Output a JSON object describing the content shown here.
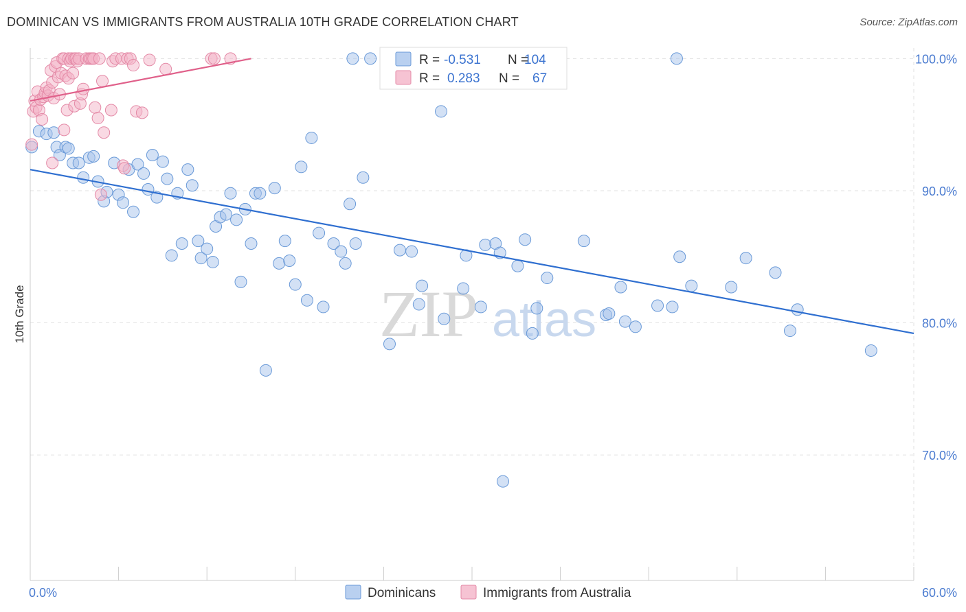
{
  "title": "DOMINICAN VS IMMIGRANTS FROM AUSTRALIA 10TH GRADE CORRELATION CHART",
  "source": "Source: ZipAtlas.com",
  "watermark": {
    "zip": "ZIP",
    "atlas": "atlas"
  },
  "legend_box": {
    "rows": [
      {
        "r_label": "R =",
        "r_value": "-0.531",
        "n_label": "N =",
        "n_value": "104",
        "color": "#a7c4ec"
      },
      {
        "r_label": "R =",
        "r_value": "0.283",
        "n_label": "N =",
        "n_value": "67",
        "color": "#f4b4c8"
      }
    ]
  },
  "bottom_legend": [
    {
      "label": "Dominicans",
      "color": "#a7c4ec"
    },
    {
      "label": "Immigrants from Australia",
      "color": "#f4b4c8"
    }
  ],
  "chart_data": {
    "type": "scatter",
    "title": "DOMINICAN VS IMMIGRANTS FROM AUSTRALIA 10TH GRADE CORRELATION CHART",
    "xlabel": "",
    "ylabel": "10th Grade",
    "xlim": [
      0,
      60
    ],
    "ylim": [
      60.5,
      100.8
    ],
    "x_tick_labels": [
      "0.0%",
      "60.0%"
    ],
    "y_ticks": [
      70,
      80,
      90,
      100
    ],
    "y_tick_labels": [
      "70.0%",
      "80.0%",
      "90.0%",
      "100.0%"
    ],
    "grid": true,
    "legend_position": "top-center",
    "series": [
      {
        "name": "Dominicans",
        "color": "#a7c4ec",
        "stroke": "#6a9ad8",
        "trend_color": "#2f6fd0",
        "trend": {
          "x": [
            0,
            60
          ],
          "y": [
            91.6,
            79.2
          ]
        },
        "points": [
          [
            0.1,
            93.3
          ],
          [
            0.6,
            94.5
          ],
          [
            1.1,
            94.3
          ],
          [
            1.6,
            94.4
          ],
          [
            1.8,
            93.3
          ],
          [
            2.0,
            92.7
          ],
          [
            2.4,
            93.3
          ],
          [
            2.6,
            93.2
          ],
          [
            2.9,
            92.1
          ],
          [
            3.3,
            92.1
          ],
          [
            3.6,
            91.0
          ],
          [
            4.0,
            92.5
          ],
          [
            4.3,
            92.6
          ],
          [
            4.6,
            90.7
          ],
          [
            5.0,
            89.2
          ],
          [
            5.2,
            89.9
          ],
          [
            5.7,
            92.1
          ],
          [
            6.0,
            89.7
          ],
          [
            6.3,
            89.1
          ],
          [
            6.7,
            91.6
          ],
          [
            7.0,
            88.4
          ],
          [
            7.3,
            92.0
          ],
          [
            7.7,
            91.3
          ],
          [
            8.0,
            90.1
          ],
          [
            8.3,
            92.7
          ],
          [
            8.6,
            89.5
          ],
          [
            9.0,
            92.2
          ],
          [
            9.3,
            90.9
          ],
          [
            9.6,
            85.1
          ],
          [
            10.0,
            89.8
          ],
          [
            10.3,
            86.0
          ],
          [
            10.7,
            91.6
          ],
          [
            11.0,
            90.4
          ],
          [
            11.4,
            86.2
          ],
          [
            11.6,
            84.9
          ],
          [
            12.0,
            85.6
          ],
          [
            12.4,
            84.6
          ],
          [
            12.6,
            87.3
          ],
          [
            12.9,
            88.0
          ],
          [
            13.3,
            88.2
          ],
          [
            13.6,
            89.8
          ],
          [
            14.0,
            87.8
          ],
          [
            14.3,
            83.1
          ],
          [
            14.6,
            88.6
          ],
          [
            15.0,
            86.0
          ],
          [
            15.3,
            89.8
          ],
          [
            15.6,
            89.8
          ],
          [
            16.0,
            76.4
          ],
          [
            16.6,
            90.2
          ],
          [
            16.9,
            84.5
          ],
          [
            17.3,
            86.2
          ],
          [
            17.6,
            84.7
          ],
          [
            18.0,
            82.9
          ],
          [
            18.4,
            91.8
          ],
          [
            18.8,
            81.7
          ],
          [
            19.1,
            94.0
          ],
          [
            19.6,
            86.8
          ],
          [
            19.9,
            81.2
          ],
          [
            20.6,
            86.0
          ],
          [
            21.1,
            85.4
          ],
          [
            21.4,
            84.5
          ],
          [
            21.7,
            89.0
          ],
          [
            22.1,
            86.0
          ],
          [
            22.6,
            91.0
          ],
          [
            21.9,
            100.0
          ],
          [
            23.1,
            100.0
          ],
          [
            24.4,
            78.4
          ],
          [
            25.1,
            85.5
          ],
          [
            25.9,
            85.4
          ],
          [
            25.4,
            100.0
          ],
          [
            25.6,
            100.0
          ],
          [
            26.4,
            81.4
          ],
          [
            26.6,
            82.8
          ],
          [
            27.9,
            96.0
          ],
          [
            28.1,
            80.3
          ],
          [
            29.4,
            82.6
          ],
          [
            29.6,
            85.1
          ],
          [
            30.6,
            81.2
          ],
          [
            30.9,
            85.9
          ],
          [
            31.6,
            86.0
          ],
          [
            31.9,
            85.3
          ],
          [
            32.1,
            68.0
          ],
          [
            32.6,
            100.0
          ],
          [
            33.1,
            84.3
          ],
          [
            33.6,
            86.3
          ],
          [
            34.1,
            79.2
          ],
          [
            34.4,
            81.1
          ],
          [
            35.1,
            83.4
          ],
          [
            37.6,
            86.2
          ],
          [
            39.1,
            80.6
          ],
          [
            39.3,
            80.7
          ],
          [
            40.1,
            82.7
          ],
          [
            40.4,
            80.1
          ],
          [
            41.1,
            79.7
          ],
          [
            42.6,
            81.3
          ],
          [
            43.6,
            81.2
          ],
          [
            43.9,
            100.0
          ],
          [
            44.1,
            85.0
          ],
          [
            44.9,
            82.8
          ],
          [
            47.6,
            82.7
          ],
          [
            48.6,
            84.9
          ],
          [
            50.6,
            83.8
          ],
          [
            51.6,
            79.4
          ],
          [
            52.1,
            81.0
          ],
          [
            57.1,
            77.9
          ]
        ]
      },
      {
        "name": "Immigrants from Australia",
        "color": "#f4b4c8",
        "stroke": "#e48aa7",
        "trend_color": "#e0608a",
        "trend": {
          "x": [
            0,
            15
          ],
          "y": [
            96.8,
            100.0
          ]
        },
        "points": [
          [
            0.1,
            93.5
          ],
          [
            0.2,
            96.0
          ],
          [
            0.3,
            96.8
          ],
          [
            0.4,
            96.3
          ],
          [
            0.5,
            97.5
          ],
          [
            0.6,
            96.1
          ],
          [
            0.7,
            96.9
          ],
          [
            0.8,
            95.4
          ],
          [
            0.9,
            97.1
          ],
          [
            1.0,
            97.4
          ],
          [
            1.1,
            97.8
          ],
          [
            1.2,
            97.2
          ],
          [
            1.3,
            97.6
          ],
          [
            1.4,
            99.1
          ],
          [
            1.5,
            98.2
          ],
          [
            1.5,
            92.1
          ],
          [
            1.6,
            97.0
          ],
          [
            1.7,
            99.4
          ],
          [
            1.8,
            99.7
          ],
          [
            1.9,
            98.6
          ],
          [
            2.0,
            97.3
          ],
          [
            2.1,
            98.9
          ],
          [
            2.2,
            100.0
          ],
          [
            2.3,
            100.0
          ],
          [
            2.3,
            94.6
          ],
          [
            2.4,
            98.7
          ],
          [
            2.5,
            96.1
          ],
          [
            2.6,
            98.5
          ],
          [
            2.6,
            100.0
          ],
          [
            2.7,
            99.8
          ],
          [
            2.8,
            100.0
          ],
          [
            2.9,
            98.9
          ],
          [
            3.0,
            100.0
          ],
          [
            3.0,
            96.4
          ],
          [
            3.1,
            100.0
          ],
          [
            3.2,
            99.8
          ],
          [
            3.3,
            100.0
          ],
          [
            3.4,
            96.6
          ],
          [
            3.5,
            97.3
          ],
          [
            3.6,
            97.7
          ],
          [
            3.8,
            100.0
          ],
          [
            4.0,
            100.0
          ],
          [
            4.1,
            100.0
          ],
          [
            4.2,
            100.0
          ],
          [
            4.3,
            100.0
          ],
          [
            4.4,
            96.3
          ],
          [
            4.6,
            95.5
          ],
          [
            4.7,
            100.0
          ],
          [
            4.8,
            89.7
          ],
          [
            4.9,
            98.3
          ],
          [
            5.0,
            94.4
          ],
          [
            5.5,
            96.1
          ],
          [
            5.6,
            99.8
          ],
          [
            5.8,
            100.0
          ],
          [
            6.2,
            100.0
          ],
          [
            6.3,
            91.9
          ],
          [
            6.4,
            91.7
          ],
          [
            6.6,
            100.0
          ],
          [
            6.8,
            100.0
          ],
          [
            7.0,
            99.5
          ],
          [
            7.2,
            96.0
          ],
          [
            7.6,
            95.9
          ],
          [
            8.1,
            99.9
          ],
          [
            9.2,
            99.2
          ],
          [
            12.3,
            100.0
          ],
          [
            12.5,
            100.0
          ],
          [
            13.6,
            100.0
          ]
        ]
      }
    ]
  }
}
